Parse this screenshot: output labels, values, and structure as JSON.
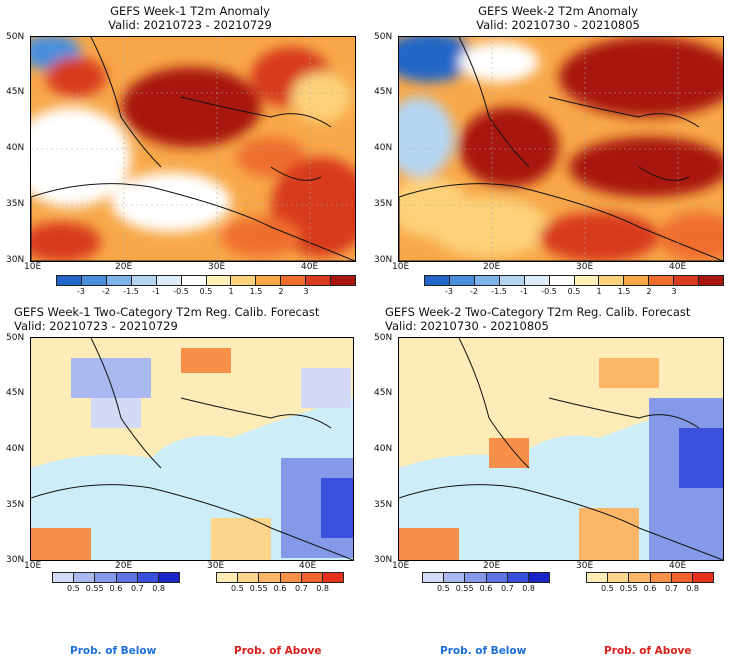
{
  "panels": [
    {
      "title": "GEFS Week-1 T2m Anomaly",
      "valid": "Valid: 20210723 - 20210729"
    },
    {
      "title": "GEFS Week-2 T2m Anomaly",
      "valid": "Valid: 20210730 - 20210805"
    },
    {
      "title": "GEFS Week-1 Two-Category T2m Reg. Calib. Forecast",
      "valid": "Valid: 20210723 - 20210729"
    },
    {
      "title": "GEFS Week-2 Two-Category T2m Reg. Calib. Forecast",
      "valid": "Valid: 20210730 - 20210805"
    }
  ],
  "axes": {
    "lat_labels": [
      "50N",
      "45N",
      "40N",
      "35N",
      "30N"
    ],
    "lon_labels": [
      "10E",
      "20E",
      "30E",
      "40E"
    ]
  },
  "anomaly_colorbar": {
    "labels": [
      "-3",
      "-2",
      "-1.5",
      "-1",
      "-0.5",
      "0.5",
      "1",
      "1.5",
      "2",
      "3"
    ],
    "colors": [
      "#2166c8",
      "#4a8fdc",
      "#7fb4ea",
      "#b4d6f3",
      "#dcecf8",
      "#ffffff",
      "#fff0b8",
      "#fdd27a",
      "#f8a848",
      "#ef6e2e",
      "#d83a1e",
      "#a81410"
    ]
  },
  "prob_below_colorbar": {
    "labels": [
      "0.5",
      "0.55",
      "0.6",
      "0.7",
      "0.8"
    ],
    "colors": [
      "#d3daf6",
      "#aab9f0",
      "#8599e8",
      "#5d74e2",
      "#3a4fdc",
      "#1a25c8"
    ]
  },
  "prob_above_colorbar": {
    "labels": [
      "0.5",
      "0.55",
      "0.6",
      "0.7",
      "0.8"
    ],
    "colors": [
      "#fdebb8",
      "#fcd58c",
      "#fbb668",
      "#f8904a",
      "#f1622e",
      "#e6321c"
    ]
  },
  "legend": {
    "below": "Prob. of Below",
    "above": "Prob. of Above",
    "below_color": "#1a6fd8",
    "above_color": "#d8201a"
  }
}
